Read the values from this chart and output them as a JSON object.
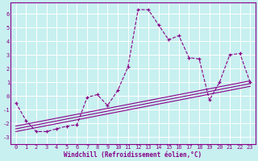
{
  "xlabel": "Windchill (Refroidissement éolien,°C)",
  "bg_color": "#c8f0f0",
  "line_color": "#880088",
  "grid_color": "#ffffff",
  "xlim": [
    -0.5,
    23.5
  ],
  "ylim": [
    -3.5,
    6.8
  ],
  "xticks": [
    0,
    1,
    2,
    3,
    4,
    5,
    6,
    7,
    8,
    9,
    10,
    11,
    12,
    13,
    14,
    15,
    16,
    17,
    18,
    19,
    20,
    21,
    22,
    23
  ],
  "yticks": [
    -3,
    -2,
    -1,
    0,
    1,
    2,
    3,
    4,
    5,
    6
  ],
  "main_x": [
    0,
    1,
    2,
    3,
    4,
    5,
    6,
    7,
    8,
    9,
    10,
    11,
    12,
    13,
    14,
    15,
    16,
    17,
    18,
    19,
    20,
    21,
    22,
    23
  ],
  "main_y": [
    -0.5,
    -1.8,
    -2.6,
    -2.6,
    -2.4,
    -2.2,
    -2.1,
    -0.1,
    0.1,
    -0.7,
    0.4,
    2.1,
    6.3,
    6.3,
    5.2,
    4.1,
    4.4,
    2.8,
    2.7,
    -0.3,
    1.0,
    3.0,
    3.1,
    1.0
  ],
  "line1_x": [
    0,
    23
  ],
  "line1_y": [
    -2.6,
    0.7
  ],
  "line2_x": [
    0,
    23
  ],
  "line2_y": [
    -2.4,
    0.9
  ],
  "line3_x": [
    0,
    23
  ],
  "line3_y": [
    -2.2,
    1.1
  ],
  "xlabel_fontsize": 5.5,
  "tick_fontsize": 5.0
}
